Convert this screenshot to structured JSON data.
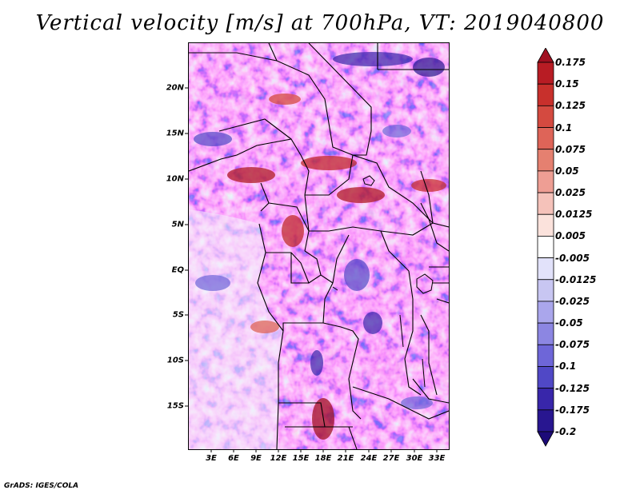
{
  "title": "Vertical velocity [m/s] at 700hPa, VT: 2019040800",
  "footer": "GrADS: IGES/COLA",
  "colors": {
    "positive_strong": "#a8141c",
    "positive_light": "#fbe3e3",
    "negative_light": "#e6e6fb",
    "negative_strong": "#2a0f8f"
  },
  "latitude_labels": [
    "20N",
    "15N",
    "10N",
    "5N",
    "EQ",
    "5S",
    "10S",
    "15S"
  ],
  "longitude_labels": [
    "3E",
    "6E",
    "9E",
    "12E",
    "15E",
    "18E",
    "21E",
    "24E",
    "27E",
    "30E",
    "33E"
  ],
  "colorbar": {
    "labels": [
      "0.175",
      "0.15",
      "0.125",
      "0.1",
      "0.075",
      "0.05",
      "0.025",
      "0.0125",
      "0.005",
      "-0.005",
      "-0.0125",
      "-0.025",
      "-0.05",
      "-0.075",
      "-0.1",
      "-0.125",
      "-0.175",
      "-0.2"
    ],
    "colors": [
      "#a01020",
      "#b81c24",
      "#c8302c",
      "#d44a40",
      "#de6458",
      "#e58070",
      "#ee9e94",
      "#f5c2ba",
      "#fbe2dc",
      "#ffffff",
      "#e2e2fa",
      "#c8c6f2",
      "#aaa6ec",
      "#8c86e2",
      "#6e66d8",
      "#5048c6",
      "#3826aa",
      "#281690",
      "#1c0a78"
    ]
  },
  "chart_data": {
    "type": "heatmap",
    "title": "Vertical velocity [m/s] at 700hPa, VT: 2019040800",
    "variable": "Vertical velocity",
    "units": "m/s",
    "level": "700hPa",
    "valid_time": "2019040800",
    "lon_range": [
      0,
      35
    ],
    "lat_range": [
      -20,
      25
    ],
    "lat_ticks": [
      20,
      15,
      10,
      5,
      0,
      -5,
      -10,
      -15
    ],
    "lon_ticks": [
      3,
      6,
      9,
      12,
      15,
      18,
      21,
      24,
      27,
      30,
      33
    ],
    "color_levels": [
      -0.2,
      -0.175,
      -0.125,
      -0.1,
      -0.075,
      -0.05,
      -0.025,
      -0.0125,
      -0.005,
      0.005,
      0.0125,
      0.025,
      0.05,
      0.075,
      0.1,
      0.125,
      0.15,
      0.175
    ]
  }
}
